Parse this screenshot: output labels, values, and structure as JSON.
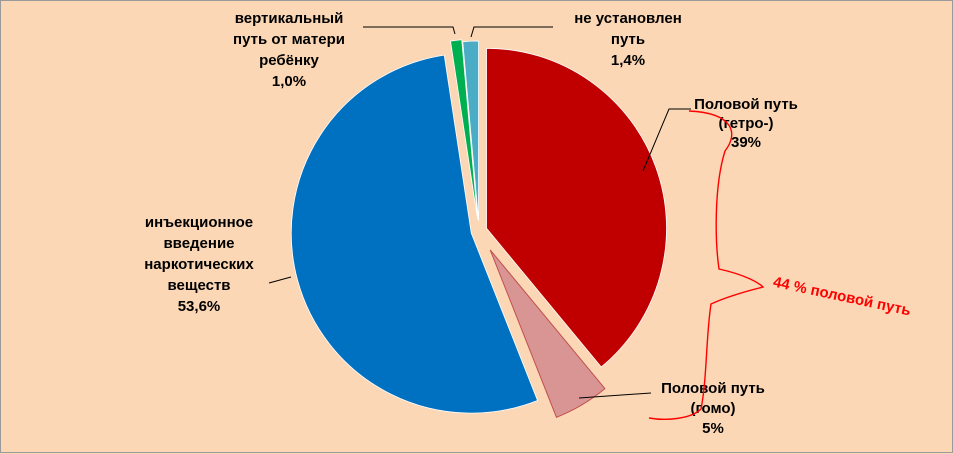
{
  "chart_data": {
    "type": "pie",
    "exploded": true,
    "slices": [
      {
        "label_lines": [
          "Половой путь",
          "(гетро-)",
          "39%"
        ],
        "value": 39,
        "color": "#c00000"
      },
      {
        "label_lines": [
          "Половой путь",
          "(гомо)",
          "5%"
        ],
        "value": 5,
        "color": "#d99594"
      },
      {
        "label_lines": [
          "инъекционное",
          "введение",
          "наркотических",
          "веществ",
          "53,6%"
        ],
        "value": 53.6,
        "color": "#0070c0"
      },
      {
        "label_lines": [
          "вертикальный",
          "путь от матери",
          "ребёнку",
          "1,0%"
        ],
        "value": 1.0,
        "color": "#00b050"
      },
      {
        "label_lines": [
          "не установлен",
          "путь",
          "1,4%"
        ],
        "value": 1.4,
        "color": "#4bacc6"
      }
    ],
    "annotation": {
      "text": "44 % половой путь",
      "color": "#ff0000"
    }
  }
}
